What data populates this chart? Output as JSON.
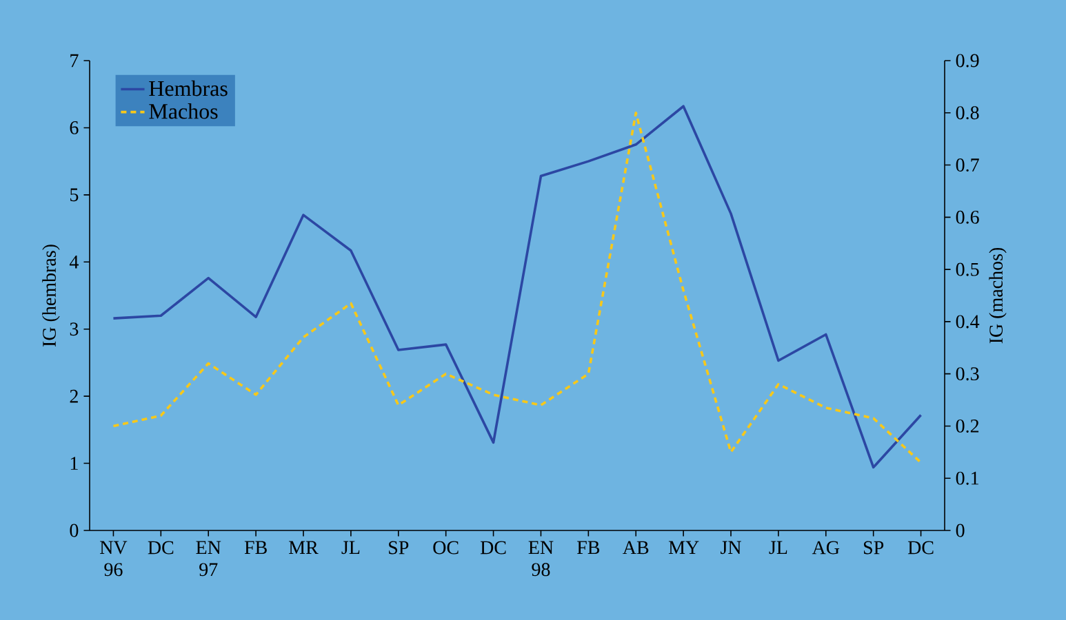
{
  "chart_data": {
    "type": "line",
    "xlabel": null,
    "ylabel": "IG (hembras)",
    "y2label": "IG (machos)",
    "categories": [
      "NV 96",
      "DC",
      "EN 97",
      "FB",
      "MR",
      "JL",
      "SP",
      "OC",
      "DC",
      "EN 98",
      "FB",
      "AB",
      "MY",
      "JN",
      "JL",
      "AG",
      "SP",
      "DC"
    ],
    "series": [
      {
        "name": "Hembras",
        "color": "#2c47a3",
        "line_style": "solid",
        "values": [
          3.16,
          3.2,
          3.76,
          3.18,
          4.7,
          4.17,
          2.69,
          2.77,
          1.31,
          5.28,
          5.5,
          5.75,
          6.32,
          4.72,
          2.53,
          2.92,
          0.94,
          1.72
        ]
      },
      {
        "name": "Machos",
        "color": "#f7c81a",
        "line_style": "dashed",
        "axis": "y2",
        "values": [
          0.2,
          0.22,
          0.32,
          0.26,
          0.37,
          0.435,
          0.24,
          0.3,
          0.26,
          0.24,
          0.3,
          0.8,
          0.46,
          0.15,
          0.28,
          0.235,
          0.215,
          0.13
        ]
      }
    ],
    "ylim": [
      0,
      7
    ],
    "yticks": [
      0,
      1,
      2,
      3,
      4,
      5,
      6,
      7
    ],
    "y2lim": [
      0,
      0.9
    ],
    "y2ticks": [
      0,
      0.1,
      0.2,
      0.3,
      0.4,
      0.5,
      0.6,
      0.7,
      0.8,
      0.9
    ],
    "legend": "top left",
    "marker": "none",
    "grid": false
  }
}
